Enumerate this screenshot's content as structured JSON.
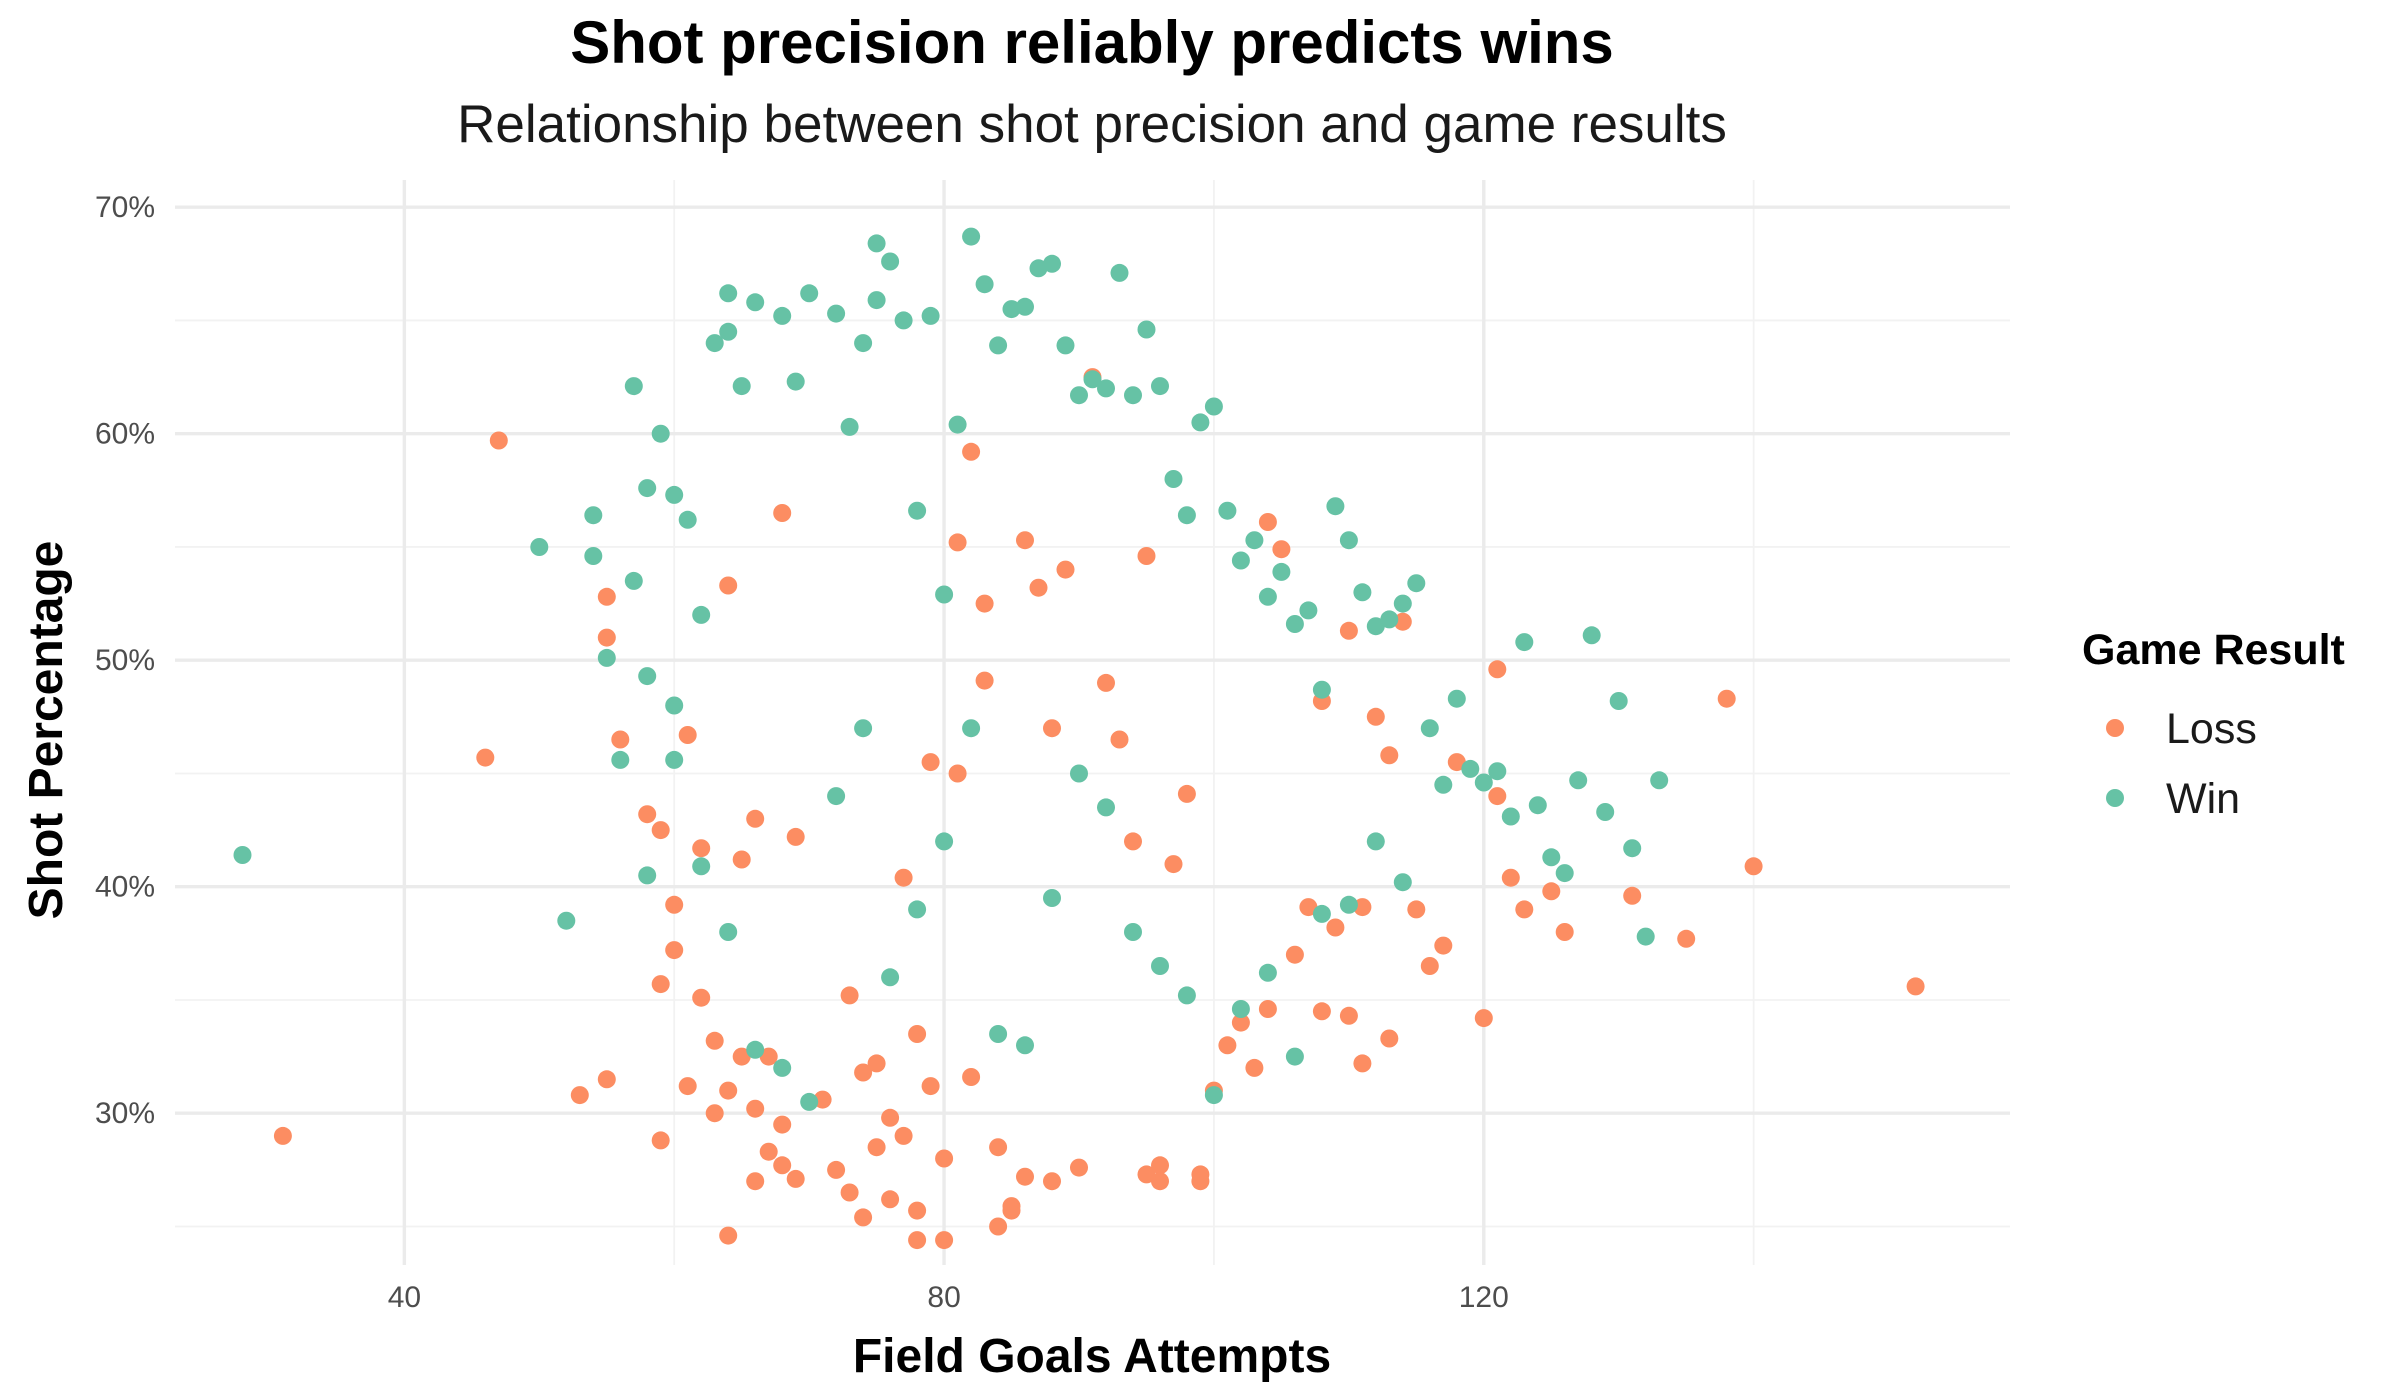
{
  "chart_data": {
    "type": "scatter",
    "title": "Shot precision reliably predicts wins",
    "subtitle": "Relationship between shot precision and game results",
    "xlabel": "Field Goals Attempts",
    "ylabel": "Shot Percentage",
    "xlim": [
      23,
      159
    ],
    "ylim": [
      0.233,
      0.712
    ],
    "x_ticks": [
      40,
      80,
      120
    ],
    "x_tick_labels": [
      "40",
      "80",
      "120"
    ],
    "y_ticks": [
      0.3,
      0.4,
      0.5,
      0.6,
      0.7
    ],
    "y_tick_labels": [
      "30%",
      "40%",
      "50%",
      "60%",
      "70%"
    ],
    "grid": true,
    "legend": {
      "title": "Game Result",
      "position": "right"
    },
    "series": [
      {
        "name": "Loss",
        "color": "#fc8d62",
        "points": [
          [
            31,
            0.29
          ],
          [
            46,
            0.457
          ],
          [
            47,
            0.597
          ],
          [
            53,
            0.308
          ],
          [
            55,
            0.315
          ],
          [
            55,
            0.51
          ],
          [
            55,
            0.528
          ],
          [
            56,
            0.465
          ],
          [
            58,
            0.432
          ],
          [
            59,
            0.357
          ],
          [
            59,
            0.288
          ],
          [
            59,
            0.425
          ],
          [
            60,
            0.392
          ],
          [
            60,
            0.372
          ],
          [
            61,
            0.467
          ],
          [
            61,
            0.312
          ],
          [
            62,
            0.417
          ],
          [
            62,
            0.351
          ],
          [
            63,
            0.3
          ],
          [
            63,
            0.332
          ],
          [
            64,
            0.31
          ],
          [
            64,
            0.246
          ],
          [
            64,
            0.533
          ],
          [
            65,
            0.412
          ],
          [
            65,
            0.325
          ],
          [
            66,
            0.302
          ],
          [
            66,
            0.27
          ],
          [
            66,
            0.43
          ],
          [
            67,
            0.325
          ],
          [
            68,
            0.565
          ],
          [
            67,
            0.283
          ],
          [
            68,
            0.277
          ],
          [
            68,
            0.295
          ],
          [
            69,
            0.271
          ],
          [
            69,
            0.422
          ],
          [
            71,
            0.306
          ],
          [
            72,
            0.275
          ],
          [
            73,
            0.352
          ],
          [
            73,
            0.265
          ],
          [
            74,
            0.254
          ],
          [
            74,
            0.318
          ],
          [
            75,
            0.322
          ],
          [
            75,
            0.285
          ],
          [
            76,
            0.262
          ],
          [
            76,
            0.298
          ],
          [
            77,
            0.404
          ],
          [
            77,
            0.29
          ],
          [
            78,
            0.257
          ],
          [
            78,
            0.244
          ],
          [
            78,
            0.335
          ],
          [
            79,
            0.455
          ],
          [
            79,
            0.312
          ],
          [
            80,
            0.244
          ],
          [
            80,
            0.28
          ],
          [
            81,
            0.45
          ],
          [
            81,
            0.552
          ],
          [
            82,
            0.592
          ],
          [
            82,
            0.316
          ],
          [
            83,
            0.525
          ],
          [
            83,
            0.491
          ],
          [
            84,
            0.25
          ],
          [
            84,
            0.285
          ],
          [
            85,
            0.259
          ],
          [
            85,
            0.257
          ],
          [
            86,
            0.553
          ],
          [
            86,
            0.272
          ],
          [
            87,
            0.532
          ],
          [
            88,
            0.27
          ],
          [
            88,
            0.47
          ],
          [
            89,
            0.54
          ],
          [
            90,
            0.276
          ],
          [
            91,
            0.625
          ],
          [
            92,
            0.49
          ],
          [
            93,
            0.465
          ],
          [
            94,
            0.42
          ],
          [
            95,
            0.546
          ],
          [
            95,
            0.273
          ],
          [
            96,
            0.27
          ],
          [
            96,
            0.277
          ],
          [
            97,
            0.41
          ],
          [
            98,
            0.441
          ],
          [
            99,
            0.27
          ],
          [
            99,
            0.273
          ],
          [
            100,
            0.31
          ],
          [
            101,
            0.33
          ],
          [
            102,
            0.34
          ],
          [
            103,
            0.32
          ],
          [
            104,
            0.346
          ],
          [
            104,
            0.561
          ],
          [
            105,
            0.549
          ],
          [
            106,
            0.37
          ],
          [
            107,
            0.391
          ],
          [
            108,
            0.345
          ],
          [
            108,
            0.482
          ],
          [
            109,
            0.382
          ],
          [
            110,
            0.513
          ],
          [
            110,
            0.343
          ],
          [
            111,
            0.391
          ],
          [
            111,
            0.322
          ],
          [
            112,
            0.475
          ],
          [
            113,
            0.458
          ],
          [
            113,
            0.333
          ],
          [
            114,
            0.517
          ],
          [
            115,
            0.39
          ],
          [
            116,
            0.365
          ],
          [
            117,
            0.374
          ],
          [
            118,
            0.455
          ],
          [
            120,
            0.342
          ],
          [
            121,
            0.496
          ],
          [
            121,
            0.44
          ],
          [
            122,
            0.404
          ],
          [
            123,
            0.39
          ],
          [
            125,
            0.398
          ],
          [
            126,
            0.38
          ],
          [
            131,
            0.396
          ],
          [
            135,
            0.377
          ],
          [
            138,
            0.483
          ],
          [
            140,
            0.409
          ],
          [
            152,
            0.356
          ]
        ]
      },
      {
        "name": "Win",
        "color": "#66c2a5",
        "points": [
          [
            28,
            0.414
          ],
          [
            50,
            0.55
          ],
          [
            52,
            0.385
          ],
          [
            54,
            0.564
          ],
          [
            54,
            0.546
          ],
          [
            55,
            0.501
          ],
          [
            56,
            0.456
          ],
          [
            57,
            0.621
          ],
          [
            57,
            0.535
          ],
          [
            58,
            0.576
          ],
          [
            58,
            0.493
          ],
          [
            58,
            0.405
          ],
          [
            59,
            0.6
          ],
          [
            60,
            0.573
          ],
          [
            60,
            0.456
          ],
          [
            61,
            0.562
          ],
          [
            62,
            0.409
          ],
          [
            63,
            0.64
          ],
          [
            64,
            0.662
          ],
          [
            64,
            0.645
          ],
          [
            65,
            0.621
          ],
          [
            66,
            0.658
          ],
          [
            68,
            0.652
          ],
          [
            69,
            0.623
          ],
          [
            70,
            0.662
          ],
          [
            72,
            0.653
          ],
          [
            73,
            0.603
          ],
          [
            74,
            0.64
          ],
          [
            75,
            0.684
          ],
          [
            75,
            0.659
          ],
          [
            76,
            0.676
          ],
          [
            77,
            0.65
          ],
          [
            78,
            0.566
          ],
          [
            79,
            0.652
          ],
          [
            80,
            0.529
          ],
          [
            81,
            0.604
          ],
          [
            82,
            0.687
          ],
          [
            83,
            0.666
          ],
          [
            84,
            0.639
          ],
          [
            85,
            0.655
          ],
          [
            86,
            0.656
          ],
          [
            87,
            0.673
          ],
          [
            88,
            0.675
          ],
          [
            89,
            0.639
          ],
          [
            90,
            0.617
          ],
          [
            91,
            0.624
          ],
          [
            92,
            0.62
          ],
          [
            93,
            0.671
          ],
          [
            94,
            0.617
          ],
          [
            95,
            0.646
          ],
          [
            96,
            0.621
          ],
          [
            97,
            0.58
          ],
          [
            98,
            0.564
          ],
          [
            99,
            0.605
          ],
          [
            100,
            0.612
          ],
          [
            101,
            0.566
          ],
          [
            102,
            0.544
          ],
          [
            103,
            0.553
          ],
          [
            104,
            0.528
          ],
          [
            105,
            0.539
          ],
          [
            106,
            0.516
          ],
          [
            107,
            0.522
          ],
          [
            108,
            0.487
          ],
          [
            109,
            0.568
          ],
          [
            110,
            0.553
          ],
          [
            111,
            0.53
          ],
          [
            112,
            0.515
          ],
          [
            113,
            0.518
          ],
          [
            114,
            0.525
          ],
          [
            115,
            0.534
          ],
          [
            116,
            0.47
          ],
          [
            117,
            0.445
          ],
          [
            118,
            0.483
          ],
          [
            119,
            0.452
          ],
          [
            120,
            0.446
          ],
          [
            121,
            0.451
          ],
          [
            122,
            0.431
          ],
          [
            123,
            0.508
          ],
          [
            124,
            0.436
          ],
          [
            125,
            0.413
          ],
          [
            126,
            0.406
          ],
          [
            127,
            0.447
          ],
          [
            128,
            0.511
          ],
          [
            129,
            0.433
          ],
          [
            130,
            0.482
          ],
          [
            131,
            0.417
          ],
          [
            132,
            0.378
          ],
          [
            133,
            0.447
          ],
          [
            60,
            0.48
          ],
          [
            62,
            0.52
          ],
          [
            64,
            0.38
          ],
          [
            66,
            0.328
          ],
          [
            68,
            0.32
          ],
          [
            70,
            0.305
          ],
          [
            72,
            0.44
          ],
          [
            74,
            0.47
          ],
          [
            76,
            0.36
          ],
          [
            78,
            0.39
          ],
          [
            80,
            0.42
          ],
          [
            82,
            0.47
          ],
          [
            84,
            0.335
          ],
          [
            86,
            0.33
          ],
          [
            88,
            0.395
          ],
          [
            90,
            0.45
          ],
          [
            92,
            0.435
          ],
          [
            94,
            0.38
          ],
          [
            96,
            0.365
          ],
          [
            98,
            0.352
          ],
          [
            100,
            0.308
          ],
          [
            102,
            0.346
          ],
          [
            104,
            0.362
          ],
          [
            106,
            0.325
          ],
          [
            108,
            0.388
          ],
          [
            110,
            0.392
          ],
          [
            112,
            0.42
          ],
          [
            114,
            0.402
          ]
        ]
      }
    ]
  }
}
